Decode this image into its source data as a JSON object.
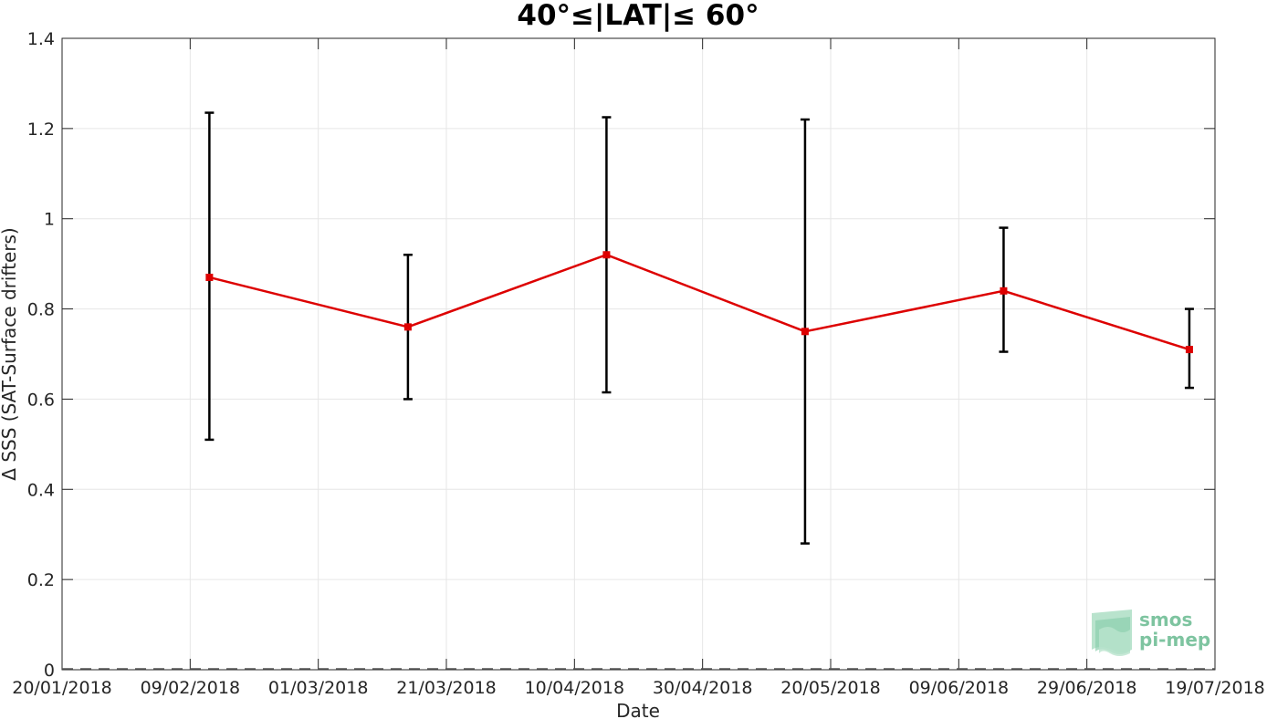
{
  "chart_data": {
    "type": "line",
    "title": "40°≤|LAT|≤ 60°",
    "xlabel": "Date",
    "ylabel": "Δ SSS (SAT-Surface drifters)",
    "ylim": [
      0,
      1.4
    ],
    "xlim": [
      "2018-01-20",
      "2018-07-19"
    ],
    "y_ticks": [
      "0",
      "0.2",
      "0.4",
      "0.6",
      "0.8",
      "1",
      "1.2",
      "1.4"
    ],
    "x_ticks": [
      "20/01/2018",
      "09/02/2018",
      "01/03/2018",
      "21/03/2018",
      "10/04/2018",
      "30/04/2018",
      "20/05/2018",
      "09/06/2018",
      "29/06/2018",
      "19/07/2018"
    ],
    "grid": true,
    "series": [
      {
        "color": "#dd0000",
        "x": [
          "2018-02-12",
          "2018-03-15",
          "2018-04-15",
          "2018-05-16",
          "2018-06-16",
          "2018-07-15"
        ],
        "y": [
          0.87,
          0.76,
          0.92,
          0.75,
          0.84,
          0.71
        ],
        "error_low": [
          0.51,
          0.6,
          0.615,
          0.28,
          0.705,
          0.625
        ],
        "error_high": [
          1.235,
          0.92,
          1.225,
          1.22,
          0.98,
          0.8
        ]
      }
    ],
    "zero_line": "dashed"
  },
  "logo": {
    "line1": "smos",
    "line2": "pi-mep",
    "color": "#7ec4a0"
  }
}
